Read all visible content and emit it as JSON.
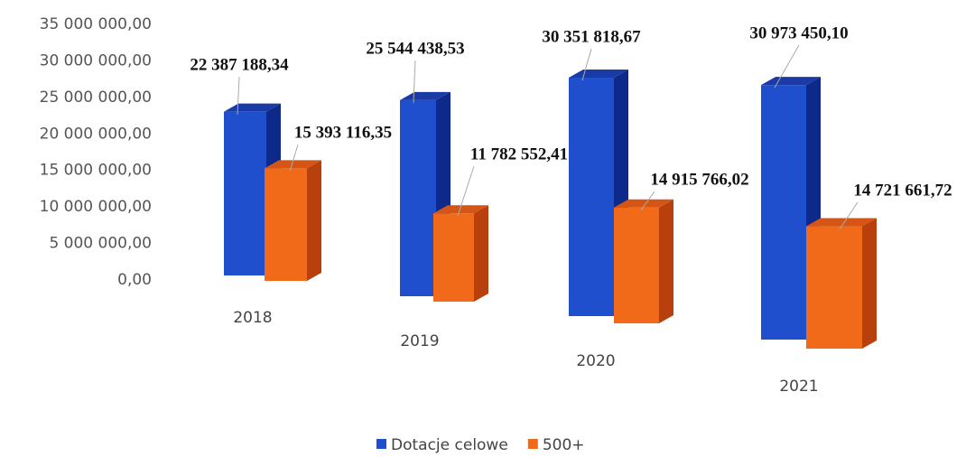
{
  "chart_data": {
    "type": "bar3d",
    "categories": [
      "2018",
      "2019",
      "2020",
      "2021"
    ],
    "series": [
      {
        "name": "Dotacje celowe",
        "color": "#1f4fcc",
        "values": [
          22387188.34,
          25544438.53,
          30351818.67,
          30973450.1
        ],
        "value_labels": [
          "22 387 188,34",
          "25 544 438,53",
          "30 351 818,67",
          "30 973 450,10"
        ]
      },
      {
        "name": "500+",
        "color": "#f06a1a",
        "values": [
          15393116.35,
          11782552.41,
          14915766.02,
          14721661.72
        ],
        "value_labels": [
          "15 393 116,35",
          "11 782 552,41",
          "14 915 766,02",
          "14 721 661,72"
        ]
      }
    ],
    "ylim": [
      0,
      35000000
    ],
    "yticks": [
      {
        "value": 0,
        "label": "0,00"
      },
      {
        "value": 5000000,
        "label": "5 000 000,00"
      },
      {
        "value": 10000000,
        "label": "10 000 000,00"
      },
      {
        "value": 15000000,
        "label": "15 000 000,00"
      },
      {
        "value": 20000000,
        "label": "20 000 000,00"
      },
      {
        "value": 25000000,
        "label": "25 000 000,00"
      },
      {
        "value": 30000000,
        "label": "30 000 000,00"
      },
      {
        "value": 35000000,
        "label": "35 000 000,00"
      }
    ],
    "legend": "bottom"
  }
}
